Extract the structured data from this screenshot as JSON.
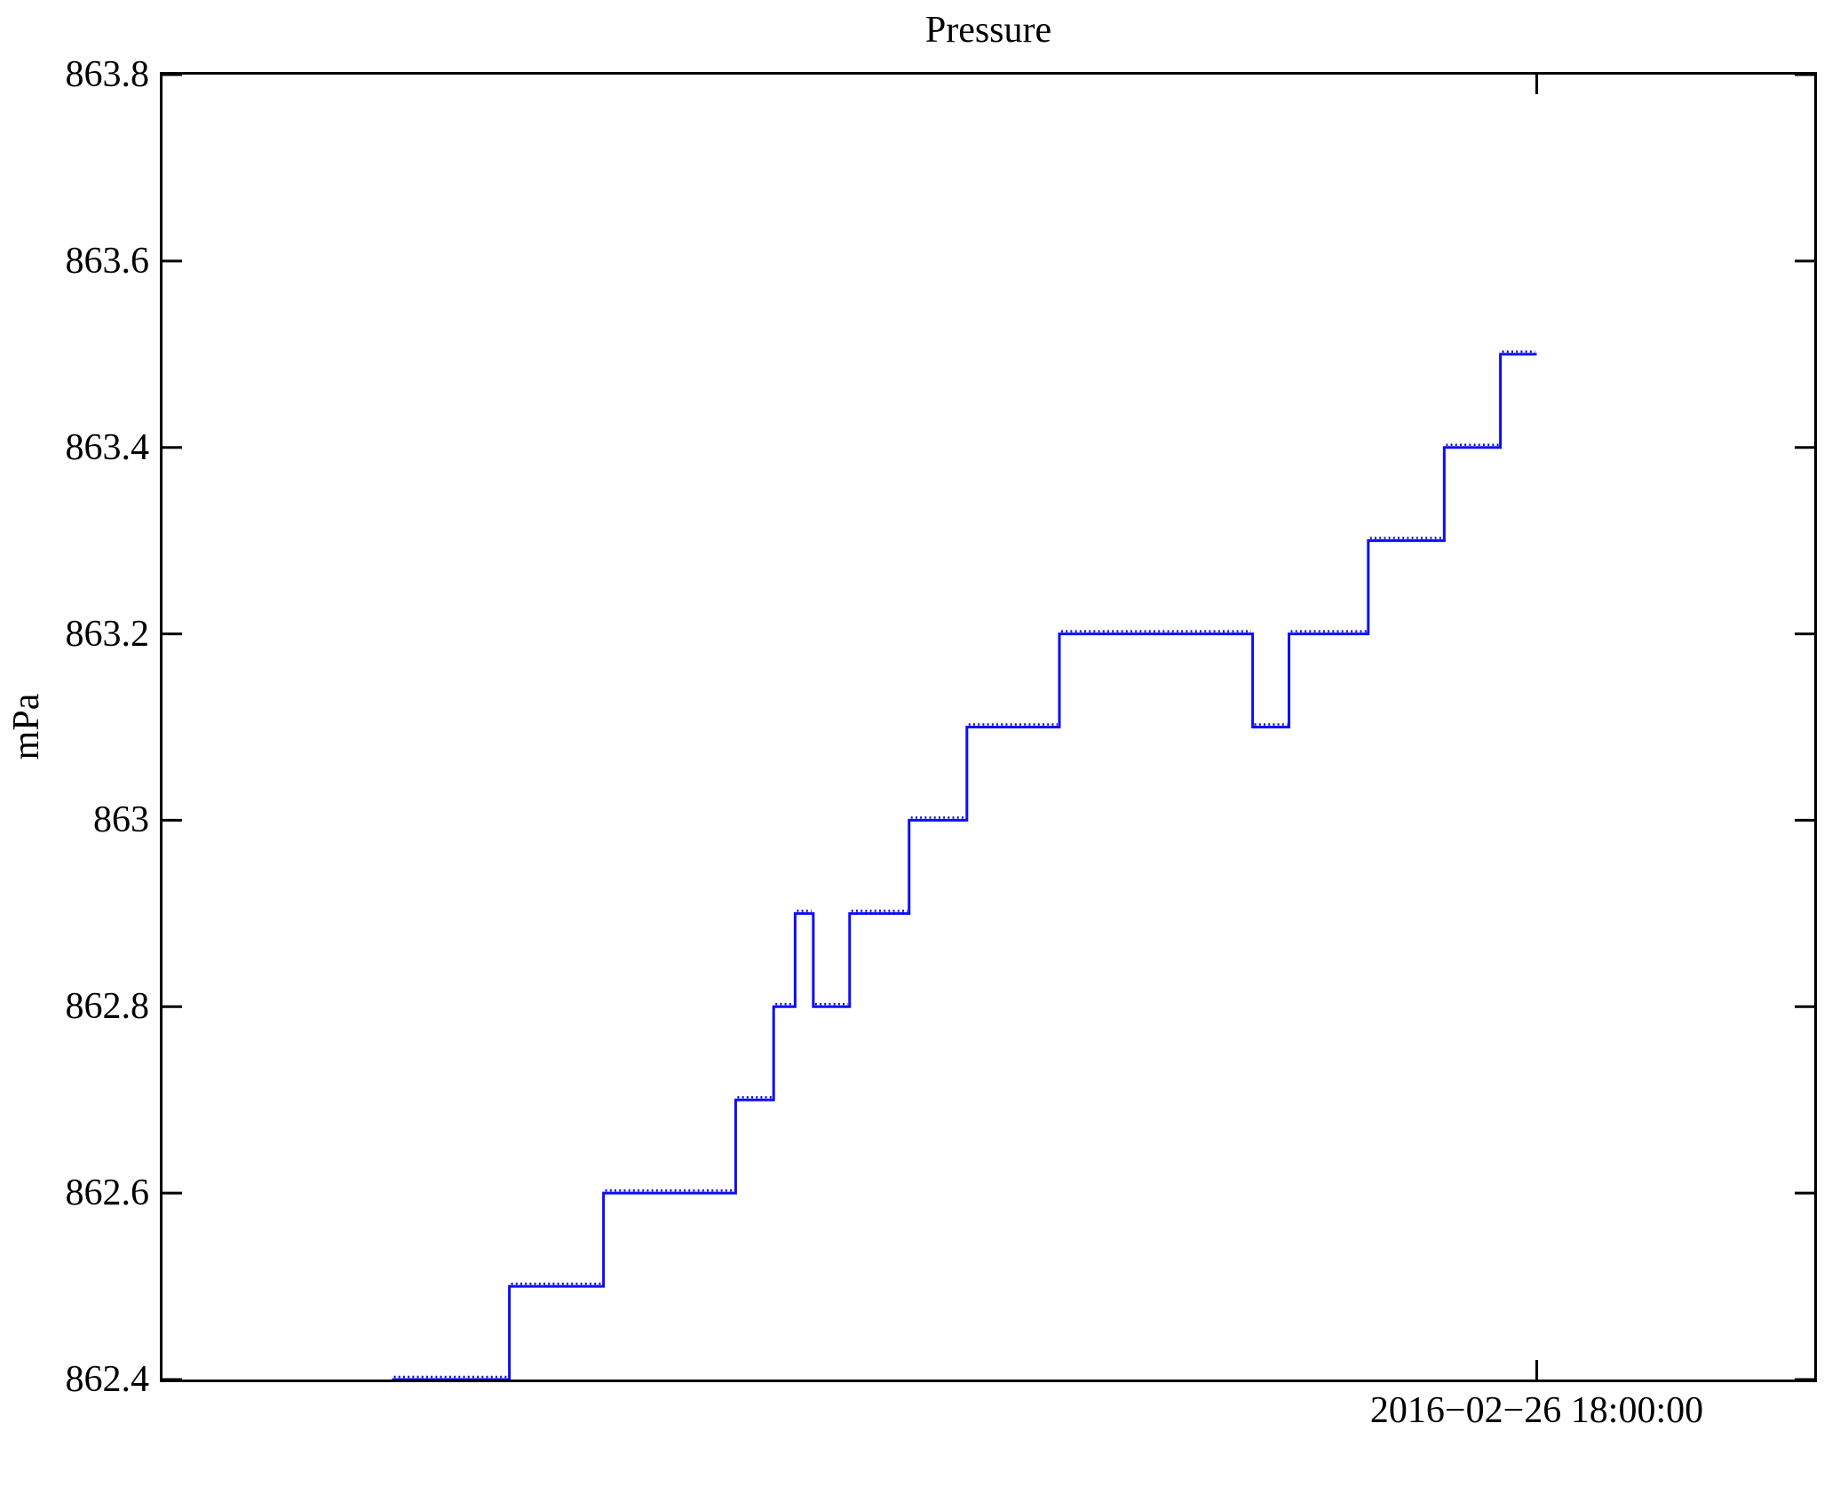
{
  "chart_data": {
    "type": "line",
    "subtype": "step",
    "title": "Pressure",
    "ylabel": "mPa",
    "xlabel": "",
    "ylim": [
      862.4,
      863.8
    ],
    "grid": false,
    "legend": null,
    "line_color": "#0e0ef2",
    "axis_color": "#000000",
    "background_color": "#ffffff",
    "yticks": [
      {
        "value": 862.4,
        "label": "862.4"
      },
      {
        "value": 862.6,
        "label": "862.6"
      },
      {
        "value": 862.8,
        "label": "862.8"
      },
      {
        "value": 863.0,
        "label": "863"
      },
      {
        "value": 863.2,
        "label": "863.2"
      },
      {
        "value": 863.4,
        "label": "863.4"
      },
      {
        "value": 863.6,
        "label": "863.6"
      },
      {
        "value": 863.8,
        "label": "863.8"
      }
    ],
    "xticks": [
      {
        "position": 0.832,
        "label": "2016−02−26 18:00:00"
      }
    ],
    "series": [
      {
        "name": "Pressure",
        "steps": [
          {
            "from": 0.139,
            "to": 0.21,
            "value": 862.4
          },
          {
            "from": 0.21,
            "to": 0.267,
            "value": 862.5
          },
          {
            "from": 0.267,
            "to": 0.347,
            "value": 862.6
          },
          {
            "from": 0.347,
            "to": 0.37,
            "value": 862.7
          },
          {
            "from": 0.37,
            "to": 0.383,
            "value": 862.8
          },
          {
            "from": 0.383,
            "to": 0.394,
            "value": 862.9
          },
          {
            "from": 0.394,
            "to": 0.416,
            "value": 862.8
          },
          {
            "from": 0.416,
            "to": 0.452,
            "value": 862.9
          },
          {
            "from": 0.452,
            "to": 0.487,
            "value": 863.0
          },
          {
            "from": 0.487,
            "to": 0.543,
            "value": 863.1
          },
          {
            "from": 0.543,
            "to": 0.66,
            "value": 863.2
          },
          {
            "from": 0.66,
            "to": 0.682,
            "value": 863.1
          },
          {
            "from": 0.682,
            "to": 0.73,
            "value": 863.2
          },
          {
            "from": 0.73,
            "to": 0.776,
            "value": 863.3
          },
          {
            "from": 0.776,
            "to": 0.81,
            "value": 863.4
          },
          {
            "from": 0.81,
            "to": 0.832,
            "value": 863.5
          }
        ]
      }
    ]
  }
}
